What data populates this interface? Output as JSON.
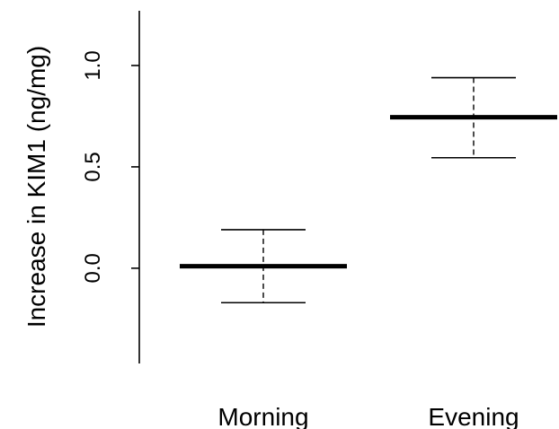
{
  "chart_data": {
    "type": "error-bar",
    "ylabel": "Increase in KIM1 (ng/mg)",
    "xlabel": "",
    "title": "",
    "categories": [
      "Morning",
      "Evening"
    ],
    "series": [
      {
        "values": [
          0.01,
          0.745
        ],
        "upper": [
          0.19,
          0.94
        ],
        "lower": [
          -0.17,
          0.545
        ]
      }
    ],
    "yticks": [
      0.0,
      0.5,
      1.0
    ],
    "ytick_labels": [
      "0.0",
      "0.5",
      "1.0"
    ],
    "ylim": [
      -0.47,
      1.27
    ],
    "grid": false
  }
}
